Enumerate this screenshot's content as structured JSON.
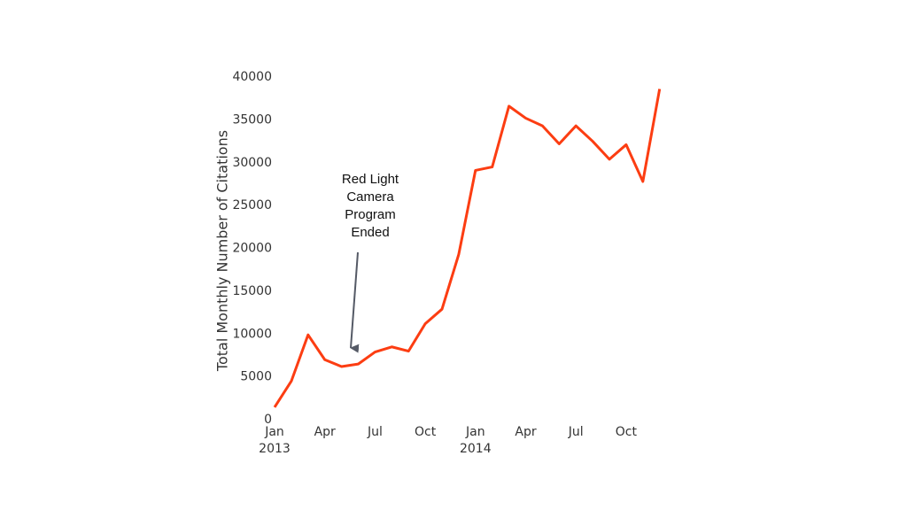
{
  "chart_data": {
    "type": "line",
    "y_label": "Total Monthly Number of Citations",
    "annotation": "Red Light Camera Program Ended",
    "categories": [
      "Jan",
      null,
      null,
      "Apr",
      null,
      null,
      "Jul",
      null,
      null,
      "Oct",
      null,
      null,
      "Jan",
      null,
      null,
      "Apr",
      null,
      null,
      "Jul",
      null,
      null,
      "Oct",
      null,
      null
    ],
    "year_labels": [
      "2013",
      "2014"
    ],
    "values": [
      1450,
      4500,
      9900,
      7000,
      6200,
      6500,
      7900,
      8500,
      8000,
      11200,
      12900,
      19300,
      29100,
      29500,
      36600,
      35200,
      34300,
      32200,
      34300,
      32500,
      30400,
      32100,
      27800,
      38600
    ],
    "color": "#fc3d12",
    "ylim": [
      0,
      40000
    ],
    "yticks": [
      0,
      5000,
      10000,
      15000,
      20000,
      25000,
      30000,
      35000,
      40000
    ],
    "grid": false
  }
}
